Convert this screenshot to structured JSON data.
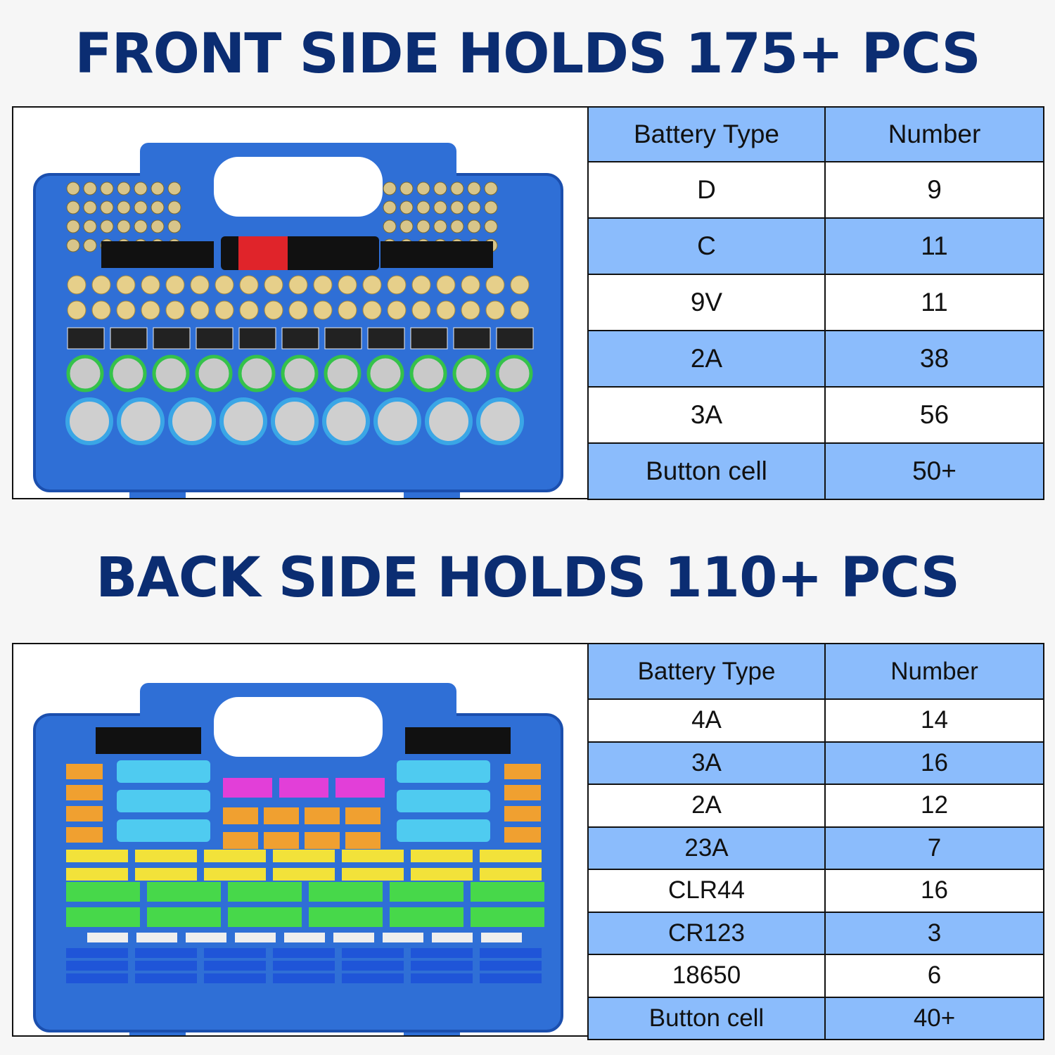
{
  "front": {
    "title": "FRONT SIDE HOLDS 175+ PCS",
    "headers": [
      "Battery Type",
      "Number"
    ],
    "rows": [
      {
        "type": "D",
        "number": "9"
      },
      {
        "type": "C",
        "number": "11"
      },
      {
        "type": "9V",
        "number": "11"
      },
      {
        "type": "2A",
        "number": "38"
      },
      {
        "type": "3A",
        "number": "56"
      },
      {
        "type": "Button cell",
        "number": "50+"
      }
    ]
  },
  "back": {
    "title": "BACK SIDE HOLDS 110+ PCS",
    "headers": [
      "Battery Type",
      "Number"
    ],
    "rows": [
      {
        "type": "4A",
        "number": "14"
      },
      {
        "type": "3A",
        "number": "16"
      },
      {
        "type": "2A",
        "number": "12"
      },
      {
        "type": "23A",
        "number": "7"
      },
      {
        "type": "CLR44",
        "number": "16"
      },
      {
        "type": "CR123",
        "number": "3"
      },
      {
        "type": "18650",
        "number": "6"
      },
      {
        "type": "Button cell",
        "number": "40+"
      }
    ]
  },
  "colors": {
    "title": "#0b2d72",
    "table_blue": "#8bbcfc",
    "case_blue": "#2f6fd6"
  }
}
